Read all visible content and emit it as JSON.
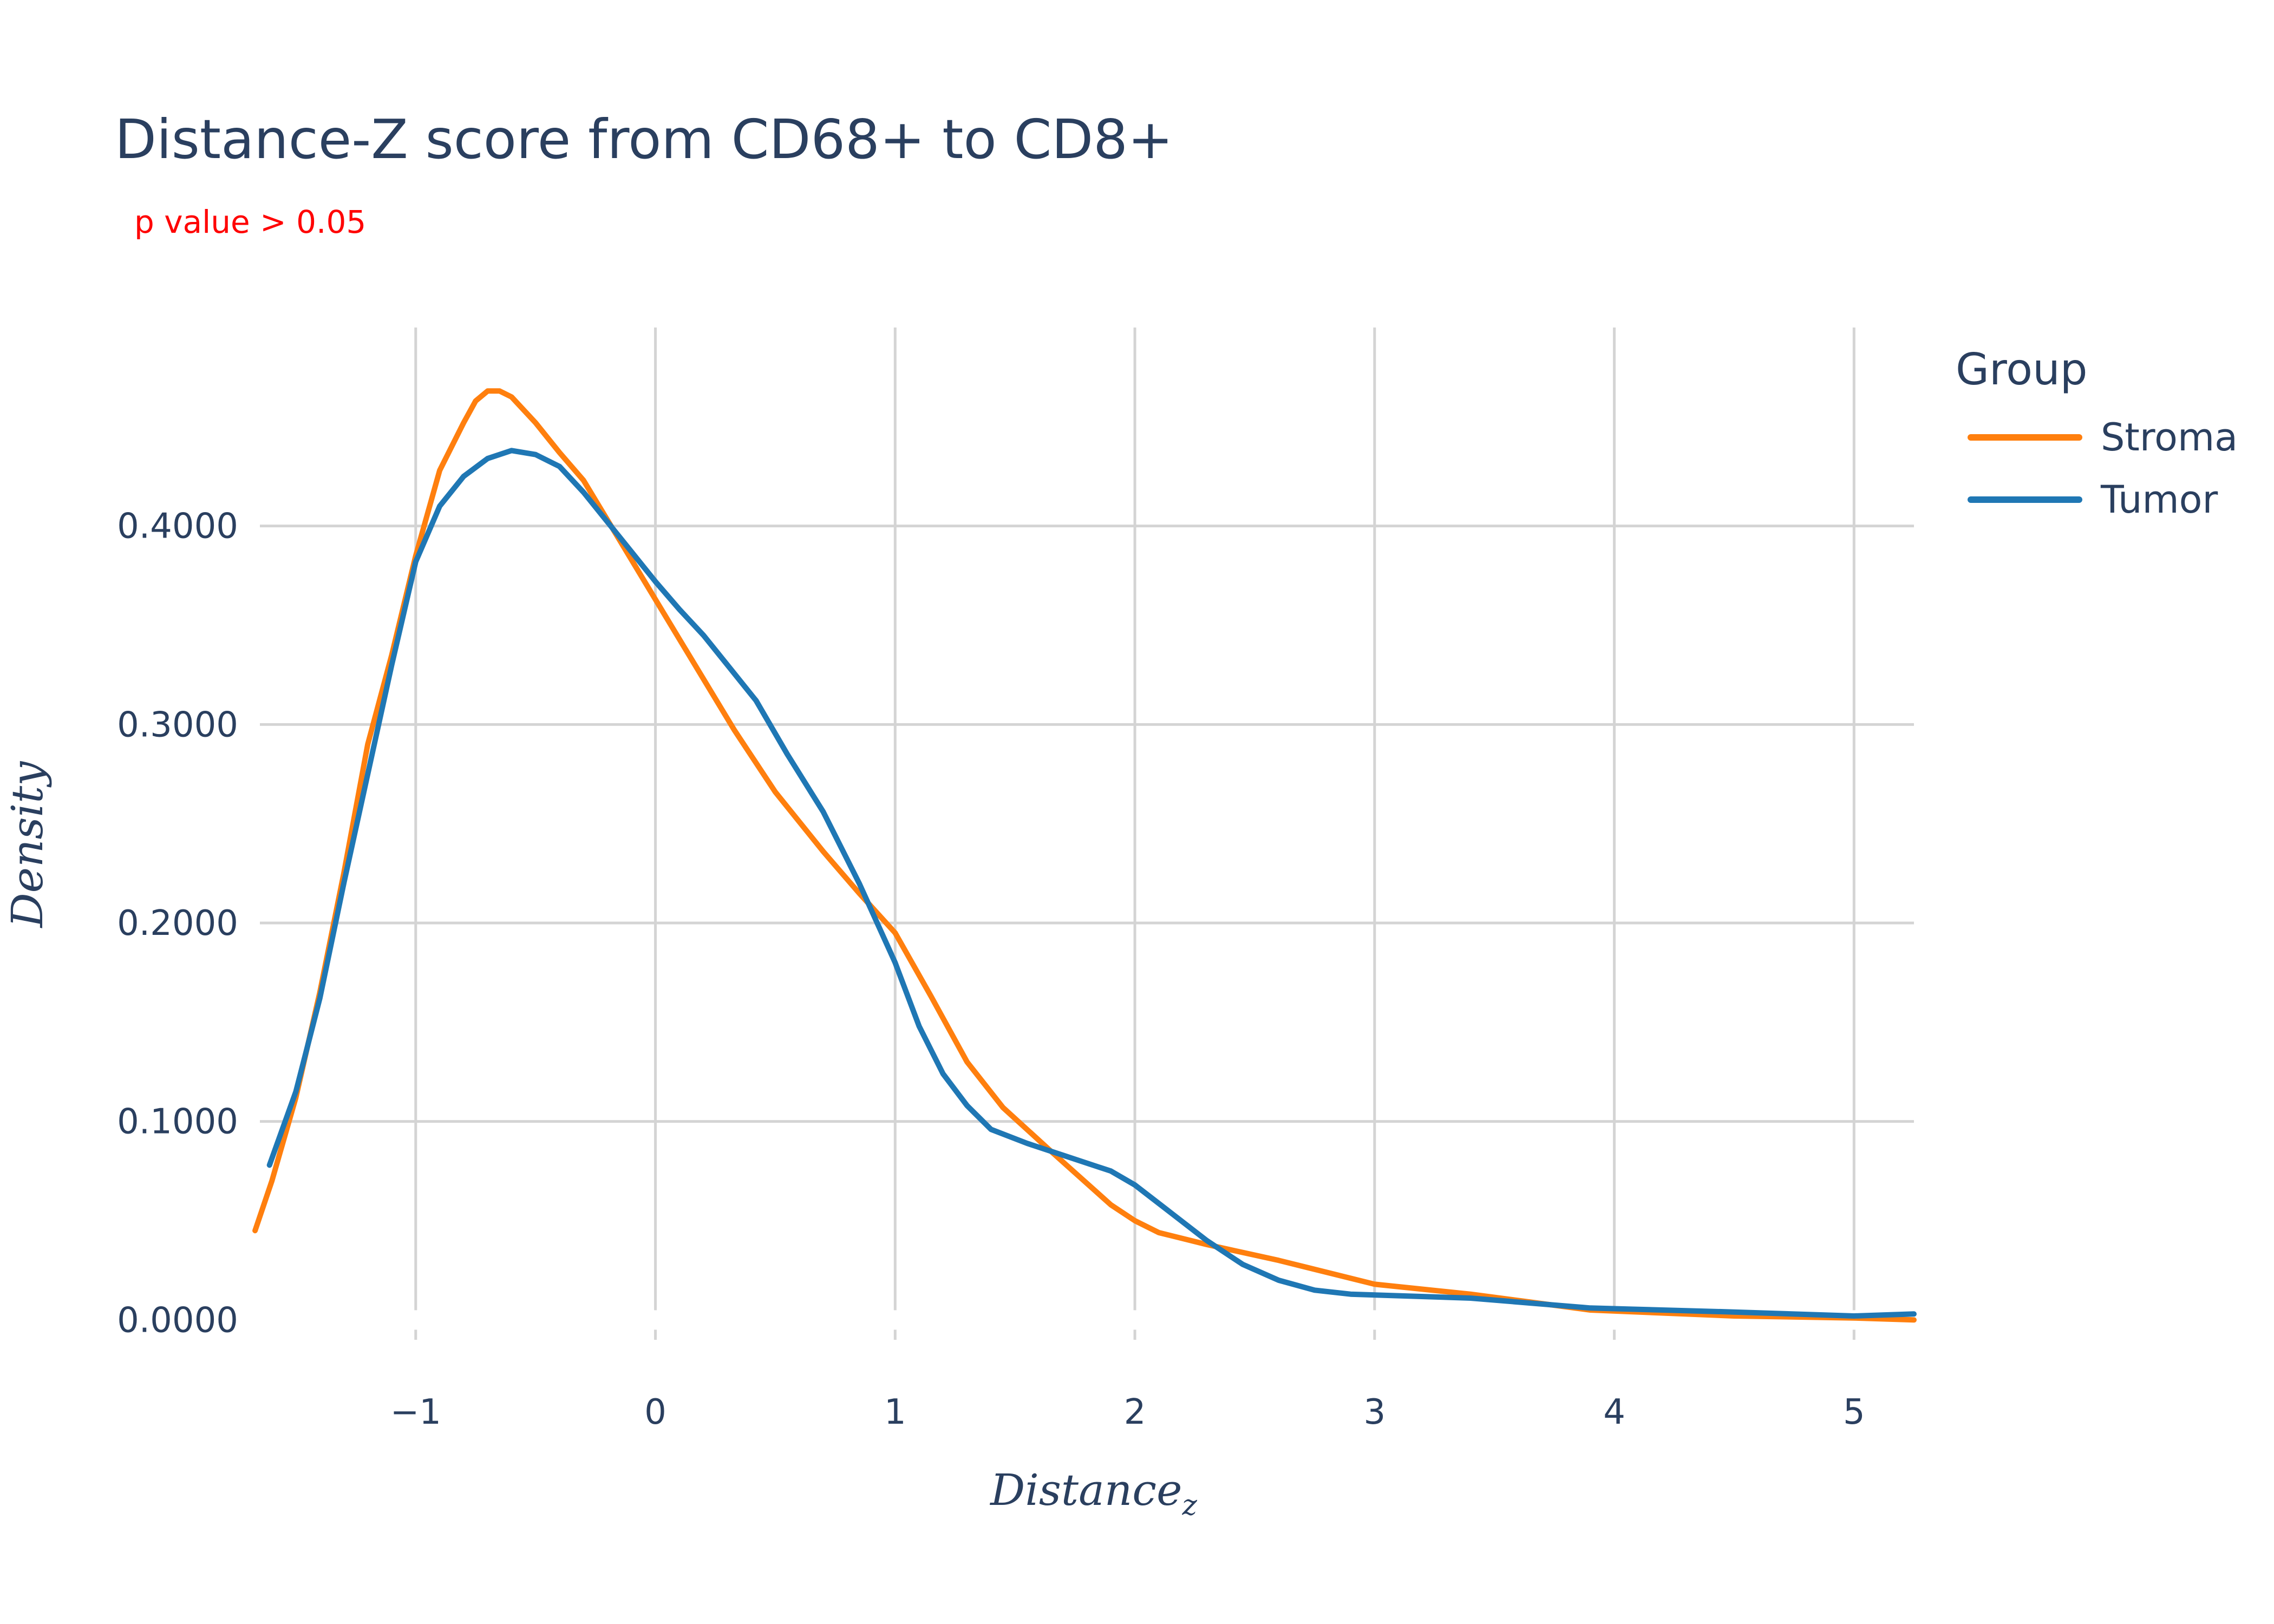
{
  "chart_data": {
    "type": "line",
    "title": "Distance-Z score from CD68+ to CD8+",
    "subtitle": "p value > 0.05",
    "xlabel": "Distance",
    "xlabel_subscript": "z",
    "ylabel": "Density",
    "xlim": [
      -1.65,
      5.25
    ],
    "ylim": [
      -0.01,
      0.5
    ],
    "x_ticks": [
      -1,
      0,
      1,
      2,
      3,
      4,
      5
    ],
    "x_tick_labels": [
      "−1",
      "0",
      "1",
      "2",
      "3",
      "4",
      "5"
    ],
    "y_ticks": [
      0,
      0.1,
      0.2,
      0.3,
      0.4
    ],
    "y_tick_labels": [
      "0.0000",
      "0.1000",
      "0.2000",
      "0.3000",
      "0.4000"
    ],
    "grid": true,
    "legend_title": "Group",
    "legend_position": "right",
    "series": [
      {
        "name": "Stroma",
        "color": "#ff7f0e",
        "x": [
          -1.67,
          -1.6,
          -1.5,
          -1.4,
          -1.3,
          -1.2,
          -1.1,
          -1.0,
          -0.9,
          -0.8,
          -0.75,
          -0.7,
          -0.65,
          -0.6,
          -0.5,
          -0.4,
          -0.3,
          -0.2,
          -0.1,
          0.0,
          0.1,
          0.2,
          0.33,
          0.5,
          0.7,
          0.85,
          1.0,
          1.15,
          1.3,
          1.45,
          1.65,
          1.9,
          2.0,
          2.1,
          2.3,
          2.6,
          3.0,
          3.4,
          3.9,
          4.5,
          5.0,
          5.25
        ],
        "y": [
          0.045,
          0.07,
          0.112,
          0.165,
          0.225,
          0.29,
          0.335,
          0.385,
          0.428,
          0.452,
          0.463,
          0.468,
          0.468,
          0.465,
          0.452,
          0.437,
          0.423,
          0.403,
          0.383,
          0.363,
          0.343,
          0.323,
          0.297,
          0.266,
          0.236,
          0.215,
          0.195,
          0.163,
          0.13,
          0.107,
          0.085,
          0.058,
          0.05,
          0.044,
          0.038,
          0.03,
          0.018,
          0.013,
          0.005,
          0.002,
          0.001,
          0.0
        ]
      },
      {
        "name": "Tumor",
        "color": "#1f77b4",
        "x": [
          -1.61,
          -1.5,
          -1.4,
          -1.3,
          -1.2,
          -1.1,
          -1.0,
          -0.9,
          -0.8,
          -0.7,
          -0.6,
          -0.5,
          -0.4,
          -0.3,
          -0.2,
          -0.1,
          0.0,
          0.1,
          0.2,
          0.3,
          0.42,
          0.55,
          0.7,
          0.85,
          1.0,
          1.1,
          1.2,
          1.3,
          1.4,
          1.55,
          1.7,
          1.9,
          2.0,
          2.15,
          2.3,
          2.45,
          2.6,
          2.75,
          2.9,
          3.4,
          3.9,
          4.5,
          5.0,
          5.25
        ],
        "y": [
          0.078,
          0.115,
          0.162,
          0.22,
          0.275,
          0.33,
          0.382,
          0.41,
          0.425,
          0.434,
          0.438,
          0.436,
          0.43,
          0.417,
          0.402,
          0.387,
          0.372,
          0.358,
          0.345,
          0.33,
          0.312,
          0.285,
          0.256,
          0.22,
          0.18,
          0.148,
          0.124,
          0.108,
          0.096,
          0.089,
          0.083,
          0.075,
          0.068,
          0.054,
          0.04,
          0.028,
          0.02,
          0.015,
          0.013,
          0.011,
          0.006,
          0.004,
          0.002,
          0.003
        ]
      }
    ]
  }
}
